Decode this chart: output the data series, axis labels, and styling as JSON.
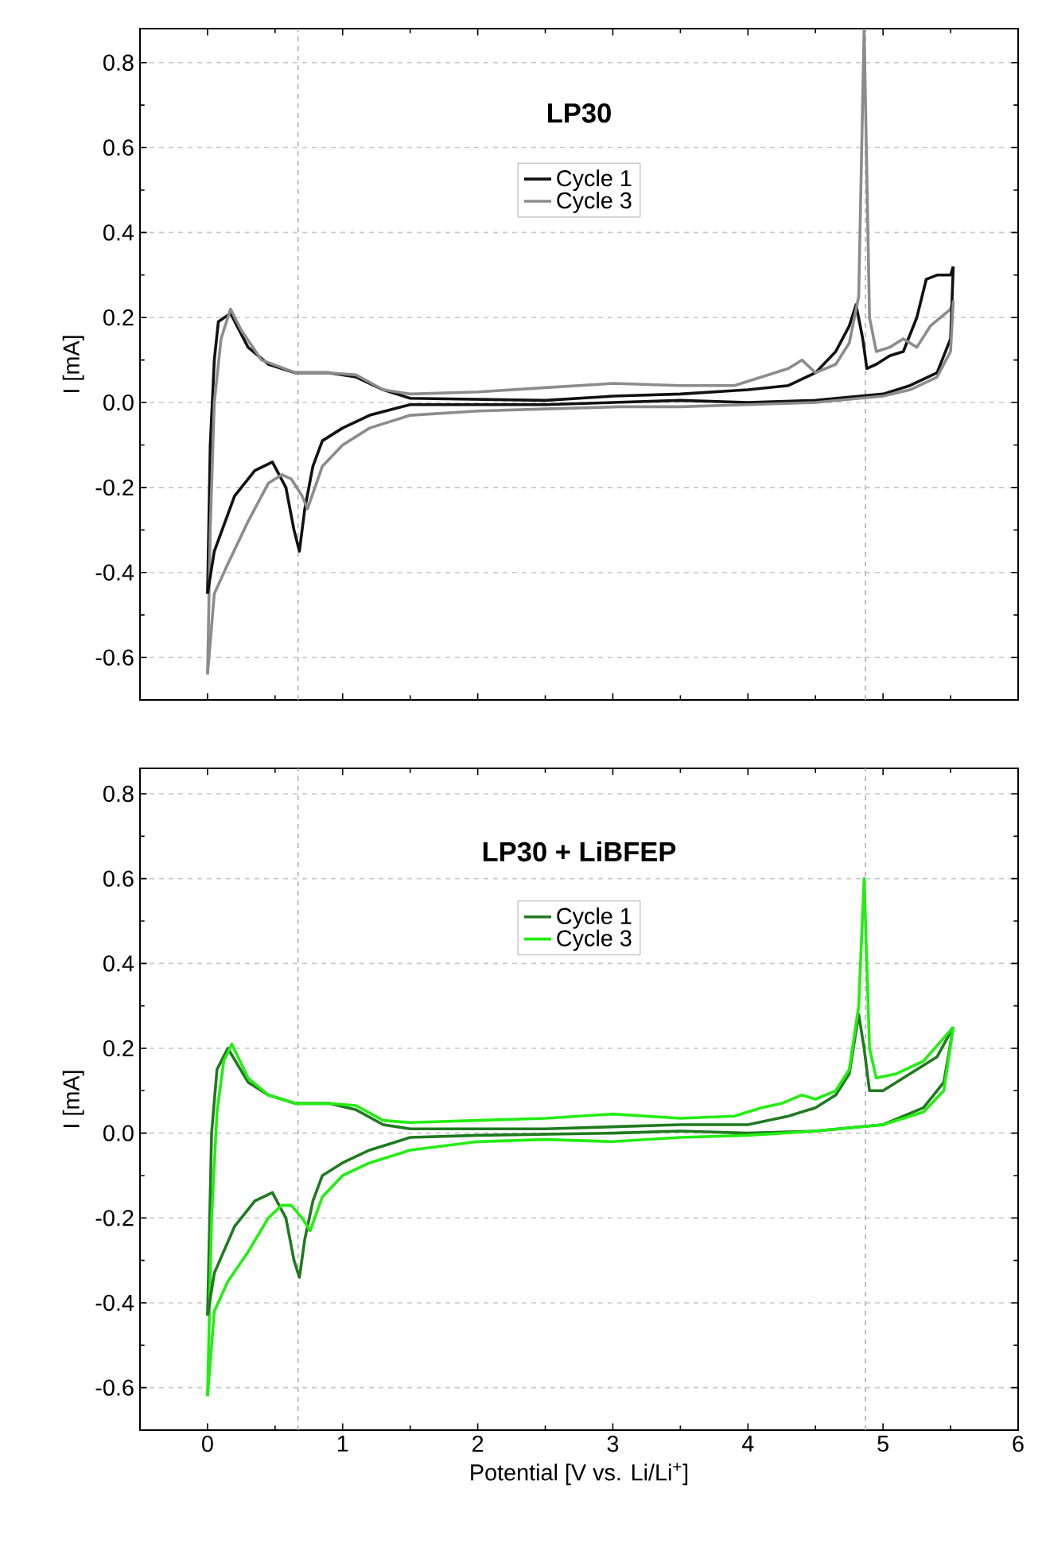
{
  "chart_data": [
    {
      "type": "line",
      "title": "LP30",
      "ylabel": "I [mA]",
      "xlim": [
        -0.5,
        6
      ],
      "xticks": [
        0,
        1,
        2,
        3,
        4,
        5,
        6
      ],
      "ylim": [
        -0.7,
        0.88
      ],
      "yticks": [
        {
          "value": -0.6,
          "label": "-0.6"
        },
        {
          "value": -0.4,
          "label": "-0.4"
        },
        {
          "value": -0.2,
          "label": "-0.2"
        },
        {
          "value": 0,
          "label": "0.0"
        },
        {
          "value": 0.2,
          "label": "0.2"
        },
        {
          "value": 0.4,
          "label": "0.4"
        },
        {
          "value": 0.6,
          "label": "0.6"
        },
        {
          "value": 0.8,
          "label": "0.8"
        }
      ],
      "tick_labels": "y",
      "grid": "y",
      "legend": "top",
      "line_style": "solid",
      "ref_lines": [
        {
          "axis": "x",
          "value": 0.67,
          "color": "#b0b0b0",
          "line_style": "dashed"
        },
        {
          "axis": "x",
          "value": 4.87,
          "color": "#b0b0b0",
          "line_style": "dashed"
        }
      ],
      "series": [
        {
          "name": "Cycle 1",
          "color": "#111111",
          "x": [
            0.0,
            0.02,
            0.05,
            0.08,
            0.17,
            0.3,
            0.45,
            0.65,
            0.9,
            1.1,
            1.3,
            1.5,
            2.5,
            3.0,
            3.5,
            4.0,
            4.3,
            4.5,
            4.65,
            4.75,
            4.8,
            4.85,
            4.88,
            4.95,
            5.05,
            5.15,
            5.25,
            5.32,
            5.4,
            5.5,
            5.52
          ],
          "values": [
            -0.45,
            -0.1,
            0.1,
            0.19,
            0.21,
            0.13,
            0.09,
            0.07,
            0.07,
            0.06,
            0.03,
            0.01,
            0.005,
            0.015,
            0.02,
            0.03,
            0.04,
            0.07,
            0.12,
            0.18,
            0.23,
            0.15,
            0.08,
            0.09,
            0.11,
            0.12,
            0.2,
            0.29,
            0.3,
            0.3,
            0.32
          ]
        },
        {
          "name": "Cycle 3",
          "color": "#8c8c8c",
          "x": [
            0.0,
            0.02,
            0.05,
            0.1,
            0.17,
            0.25,
            0.4,
            0.65,
            0.9,
            1.1,
            1.3,
            1.5,
            2.0,
            2.5,
            3.0,
            3.5,
            3.9,
            4.1,
            4.3,
            4.4,
            4.5,
            4.65,
            4.75,
            4.82,
            4.86,
            4.9,
            4.95,
            5.05,
            5.15,
            5.25,
            5.35,
            5.5,
            5.52
          ],
          "values": [
            -0.64,
            -0.3,
            0.0,
            0.15,
            0.22,
            0.17,
            0.1,
            0.07,
            0.07,
            0.065,
            0.03,
            0.02,
            0.025,
            0.035,
            0.045,
            0.04,
            0.04,
            0.06,
            0.08,
            0.1,
            0.07,
            0.09,
            0.14,
            0.25,
            0.88,
            0.2,
            0.12,
            0.13,
            0.15,
            0.13,
            0.18,
            0.22,
            0.24
          ]
        },
        {
          "color": "#111111",
          "x": [
            0.0,
            0.05,
            0.2,
            0.35,
            0.48,
            0.58,
            0.64,
            0.68,
            0.72,
            0.78,
            0.85,
            1.0,
            1.2,
            1.5,
            2.0,
            2.5,
            3.0,
            3.5,
            4.0,
            4.5,
            5.0,
            5.2,
            5.4,
            5.5,
            5.52
          ],
          "values": [
            -0.45,
            -0.35,
            -0.22,
            -0.16,
            -0.14,
            -0.2,
            -0.3,
            -0.35,
            -0.25,
            -0.15,
            -0.09,
            -0.06,
            -0.03,
            -0.005,
            -0.005,
            -0.005,
            0.0,
            0.005,
            0.0,
            0.005,
            0.02,
            0.04,
            0.07,
            0.15,
            0.32
          ]
        },
        {
          "color": "#8c8c8c",
          "x": [
            0.0,
            0.05,
            0.15,
            0.3,
            0.45,
            0.55,
            0.62,
            0.7,
            0.74,
            0.85,
            1.0,
            1.2,
            1.5,
            2.0,
            2.5,
            3.05,
            3.5,
            4.0,
            4.5,
            5.0,
            5.2,
            5.4,
            5.5,
            5.52
          ],
          "values": [
            -0.64,
            -0.45,
            -0.38,
            -0.28,
            -0.19,
            -0.17,
            -0.18,
            -0.22,
            -0.25,
            -0.15,
            -0.1,
            -0.06,
            -0.03,
            -0.02,
            -0.015,
            -0.01,
            -0.01,
            -0.005,
            0.0,
            0.015,
            0.03,
            0.06,
            0.12,
            0.24
          ]
        }
      ]
    },
    {
      "type": "line",
      "title": "LP30 + LiBFEP",
      "xlabel": "Potential [V vs. Li/Li$^{+}$]",
      "ylabel": "I [mA]",
      "xlim": [
        -0.5,
        6
      ],
      "xticks": [
        0,
        1,
        2,
        3,
        4,
        5,
        6
      ],
      "ylim": [
        -0.7,
        0.86
      ],
      "yticks": [
        {
          "value": -0.6,
          "label": "-0.6"
        },
        {
          "value": -0.4,
          "label": "-0.4"
        },
        {
          "value": -0.2,
          "label": "-0.2"
        },
        {
          "value": 0,
          "label": "0.0"
        },
        {
          "value": 0.2,
          "label": "0.2"
        },
        {
          "value": 0.4,
          "label": "0.4"
        },
        {
          "value": 0.6,
          "label": "0.6"
        },
        {
          "value": 0.8,
          "label": "0.8"
        }
      ],
      "grid": "y",
      "legend": "top",
      "line_style": "solid",
      "ref_lines": [
        {
          "axis": "x",
          "value": 0.67,
          "color": "#b0b0b0",
          "line_style": "dashed"
        },
        {
          "axis": "x",
          "value": 4.87,
          "color": "#b0b0b0",
          "line_style": "dashed"
        }
      ],
      "series": [
        {
          "name": "Cycle 1",
          "color": "#1f7a1f",
          "x": [
            0.0,
            0.03,
            0.07,
            0.15,
            0.3,
            0.45,
            0.65,
            0.9,
            1.1,
            1.3,
            1.5,
            2.5,
            3.0,
            3.5,
            4.0,
            4.3,
            4.5,
            4.65,
            4.75,
            4.82,
            4.86,
            4.9,
            5.0,
            5.2,
            5.4,
            5.52
          ],
          "values": [
            -0.43,
            0.0,
            0.15,
            0.2,
            0.12,
            0.09,
            0.07,
            0.07,
            0.055,
            0.02,
            0.01,
            0.01,
            0.015,
            0.02,
            0.02,
            0.04,
            0.06,
            0.09,
            0.14,
            0.28,
            0.2,
            0.1,
            0.1,
            0.14,
            0.18,
            0.25
          ]
        },
        {
          "name": "Cycle 3",
          "color": "#22ee11",
          "x": [
            0.0,
            0.03,
            0.07,
            0.12,
            0.18,
            0.3,
            0.45,
            0.65,
            0.9,
            1.1,
            1.3,
            1.5,
            2.0,
            2.5,
            3.0,
            3.5,
            3.9,
            4.1,
            4.25,
            4.4,
            4.5,
            4.65,
            4.75,
            4.82,
            4.86,
            4.9,
            4.95,
            5.1,
            5.3,
            5.52
          ],
          "values": [
            -0.62,
            -0.2,
            0.05,
            0.17,
            0.21,
            0.13,
            0.09,
            0.07,
            0.07,
            0.065,
            0.03,
            0.025,
            0.03,
            0.035,
            0.045,
            0.035,
            0.04,
            0.06,
            0.07,
            0.09,
            0.08,
            0.1,
            0.15,
            0.3,
            0.6,
            0.2,
            0.13,
            0.14,
            0.17,
            0.25
          ]
        },
        {
          "color": "#1f7a1f",
          "x": [
            0.0,
            0.05,
            0.2,
            0.35,
            0.48,
            0.58,
            0.64,
            0.68,
            0.72,
            0.78,
            0.85,
            1.0,
            1.2,
            1.5,
            2.0,
            3.0,
            3.5,
            4.0,
            4.5,
            5.0,
            5.3,
            5.45,
            5.52
          ],
          "values": [
            -0.43,
            -0.33,
            -0.22,
            -0.16,
            -0.14,
            -0.2,
            -0.3,
            -0.34,
            -0.25,
            -0.16,
            -0.1,
            -0.07,
            -0.04,
            -0.01,
            -0.005,
            0.0,
            0.005,
            0.0,
            0.005,
            0.02,
            0.06,
            0.12,
            0.25
          ]
        },
        {
          "color": "#22ee11",
          "x": [
            0.0,
            0.05,
            0.15,
            0.3,
            0.45,
            0.55,
            0.62,
            0.7,
            0.76,
            0.85,
            1.0,
            1.2,
            1.5,
            2.0,
            2.5,
            3.0,
            3.5,
            4.0,
            4.5,
            5.0,
            5.3,
            5.45,
            5.52
          ],
          "values": [
            -0.62,
            -0.42,
            -0.35,
            -0.28,
            -0.2,
            -0.17,
            -0.17,
            -0.2,
            -0.23,
            -0.15,
            -0.1,
            -0.07,
            -0.04,
            -0.02,
            -0.015,
            -0.02,
            -0.01,
            -0.005,
            0.005,
            0.02,
            0.05,
            0.1,
            0.25
          ]
        }
      ]
    }
  ]
}
